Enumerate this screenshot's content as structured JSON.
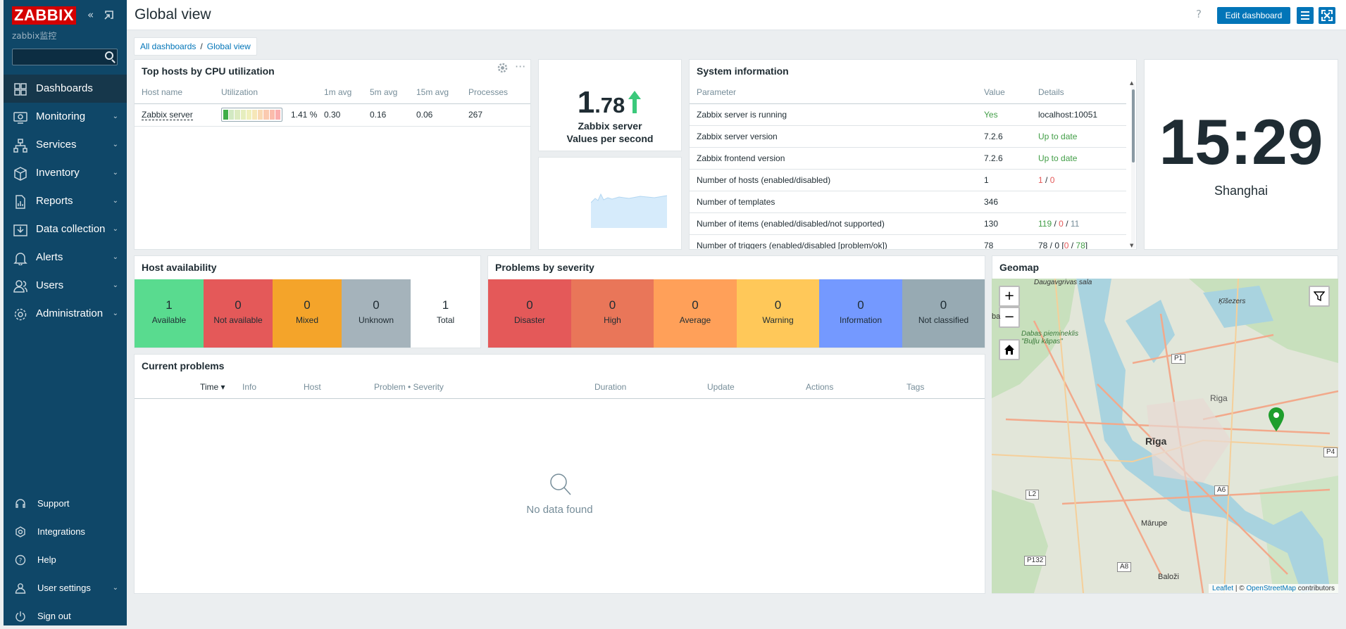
{
  "sidebar": {
    "logo": "ZABBIX",
    "instance_name": "zabbix监控",
    "search_placeholder": "",
    "nav": [
      {
        "label": "Dashboards",
        "icon": "dashboards-icon"
      },
      {
        "label": "Monitoring",
        "icon": "monitoring-icon"
      },
      {
        "label": "Services",
        "icon": "services-icon"
      },
      {
        "label": "Inventory",
        "icon": "inventory-icon"
      },
      {
        "label": "Reports",
        "icon": "reports-icon"
      },
      {
        "label": "Data collection",
        "icon": "data-collection-icon"
      },
      {
        "label": "Alerts",
        "icon": "alerts-icon"
      },
      {
        "label": "Users",
        "icon": "users-icon"
      },
      {
        "label": "Administration",
        "icon": "administration-icon"
      }
    ],
    "bottom": [
      {
        "label": "Support",
        "icon": "headset-icon"
      },
      {
        "label": "Integrations",
        "icon": "integrations-icon"
      },
      {
        "label": "Help",
        "icon": "help-icon"
      },
      {
        "label": "User settings",
        "icon": "user-icon"
      },
      {
        "label": "Sign out",
        "icon": "power-icon"
      }
    ]
  },
  "header": {
    "title": "Global view",
    "help": "?",
    "edit_button": "Edit dashboard"
  },
  "breadcrumb": {
    "parent": "All dashboards",
    "separator": "/",
    "current": "Global view"
  },
  "top_hosts": {
    "title": "Top hosts by CPU utilization",
    "columns": [
      "Host name",
      "Utilization",
      "1m avg",
      "5m avg",
      "15m avg",
      "Processes"
    ],
    "rows": [
      {
        "host": "Zabbix server",
        "utilization": "1.41 %",
        "utilization_fraction": 0.0141,
        "avg1": "0.30",
        "avg5": "0.16",
        "avg15": "0.06",
        "processes": "267"
      }
    ]
  },
  "item_value": {
    "value_int": "1",
    "value_dec": ".78",
    "trend": "up",
    "line1": "Zabbix server",
    "line2": "Values per second"
  },
  "system_info": {
    "title": "System information",
    "columns": [
      "Parameter",
      "Value",
      "Details"
    ],
    "rows": [
      {
        "param": "Zabbix server is running",
        "value": "Yes",
        "details": "localhost:10051"
      },
      {
        "param": "Zabbix server version",
        "value": "7.2.6",
        "details": "Up to date"
      },
      {
        "param": "Zabbix frontend version",
        "value": "7.2.6",
        "details": "Up to date"
      },
      {
        "param": "Number of hosts (enabled/disabled)",
        "value": "1",
        "d1": "1",
        "s1": "/",
        "d2": "0"
      },
      {
        "param": "Number of templates",
        "value": "346",
        "details": ""
      },
      {
        "param": "Number of items (enabled/disabled/not supported)",
        "value": "130",
        "d1": "119",
        "s1": "/",
        "d2": "0",
        "s2": "/",
        "d3": "11"
      },
      {
        "param": "Number of triggers (enabled/disabled [problem/ok])",
        "value": "78",
        "d1": "78 / 0 [",
        "d2": "0",
        "s1": " / ",
        "d3": "78",
        "s2": "]"
      }
    ]
  },
  "clock": {
    "time": "15:29",
    "zone": "Shanghai"
  },
  "host_availability": {
    "title": "Host availability",
    "tiles": [
      {
        "count": "1",
        "label": "Available",
        "color": "#59db8f"
      },
      {
        "count": "0",
        "label": "Not available",
        "color": "#e45959"
      },
      {
        "count": "0",
        "label": "Mixed",
        "color": "#f4a42a"
      },
      {
        "count": "0",
        "label": "Unknown",
        "color": "#a5b3bb"
      },
      {
        "count": "1",
        "label": "Total",
        "color": "#ffffff"
      }
    ]
  },
  "problems_by_severity": {
    "title": "Problems by severity",
    "tiles": [
      {
        "count": "0",
        "label": "Disaster",
        "color": "#e45959"
      },
      {
        "count": "0",
        "label": "High",
        "color": "#e97659"
      },
      {
        "count": "0",
        "label": "Average",
        "color": "#ffa059"
      },
      {
        "count": "0",
        "label": "Warning",
        "color": "#ffc859"
      },
      {
        "count": "0",
        "label": "Information",
        "color": "#7499ff"
      },
      {
        "count": "0",
        "label": "Not classified",
        "color": "#97aab3"
      }
    ]
  },
  "current_problems": {
    "title": "Current problems",
    "columns": [
      "Time ▾",
      "Info",
      "Host",
      "Problem • Severity",
      "Duration",
      "Update",
      "Actions",
      "Tags"
    ],
    "empty": "No data found"
  },
  "geomap": {
    "title": "Geomap",
    "zoom_in": "+",
    "zoom_out": "−",
    "labels": [
      "Daugavgrivas sala",
      "Ķīšezers",
      "Dabas piemineklis \"Buļļu kāpas\"",
      "Rīga",
      "Riga",
      "Mārupe",
      "Baloži",
      "ba"
    ],
    "roads": [
      "P1",
      "L2",
      "A6",
      "P4",
      "P132",
      "A8"
    ],
    "attribution": {
      "leaflet": "Leaflet",
      "sep": " | © ",
      "osm": "OpenStreetMap",
      "suffix": " contributors"
    }
  }
}
